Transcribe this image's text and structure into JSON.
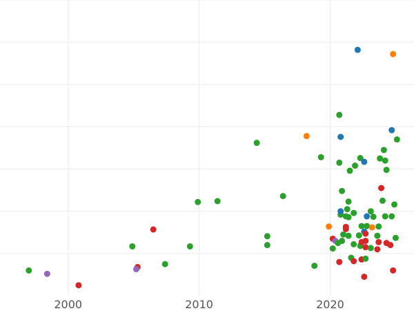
{
  "chart_data": {
    "type": "scatter",
    "title": "",
    "xlabel": "",
    "ylabel": "",
    "xlim": [
      1994.8,
      2026.4
    ],
    "ylim": [
      0,
      7
    ],
    "x_ticks": [
      2000,
      2010,
      2020
    ],
    "y_grid": [
      1,
      2,
      3,
      4,
      5,
      6,
      7
    ],
    "grid": true,
    "legend": "none",
    "colors": {
      "blue": "#1f77b4",
      "orange": "#ff7f0e",
      "green": "#2ca02c",
      "red": "#d62728",
      "purple": "#9467bd"
    },
    "points": [
      {
        "x": 1997.0,
        "y": 0.6,
        "c": "green"
      },
      {
        "x": 1998.4,
        "y": 0.52,
        "c": "purple"
      },
      {
        "x": 2000.8,
        "y": 0.25,
        "c": "red"
      },
      {
        "x": 2004.9,
        "y": 1.17,
        "c": "green"
      },
      {
        "x": 2005.3,
        "y": 0.68,
        "c": "red"
      },
      {
        "x": 2005.2,
        "y": 0.63,
        "c": "purple"
      },
      {
        "x": 2006.5,
        "y": 1.57,
        "c": "red"
      },
      {
        "x": 2007.4,
        "y": 0.75,
        "c": "green"
      },
      {
        "x": 2009.3,
        "y": 1.17,
        "c": "green"
      },
      {
        "x": 2009.9,
        "y": 2.22,
        "c": "green"
      },
      {
        "x": 2011.4,
        "y": 2.24,
        "c": "green"
      },
      {
        "x": 2014.4,
        "y": 3.62,
        "c": "green"
      },
      {
        "x": 2015.2,
        "y": 1.2,
        "c": "green"
      },
      {
        "x": 2015.2,
        "y": 1.41,
        "c": "green"
      },
      {
        "x": 2016.4,
        "y": 2.36,
        "c": "green"
      },
      {
        "x": 2018.2,
        "y": 3.78,
        "c": "orange"
      },
      {
        "x": 2018.8,
        "y": 0.71,
        "c": "green"
      },
      {
        "x": 2019.3,
        "y": 3.28,
        "c": "green"
      },
      {
        "x": 2019.9,
        "y": 1.64,
        "c": "orange"
      },
      {
        "x": 2020.2,
        "y": 1.12,
        "c": "green"
      },
      {
        "x": 2020.2,
        "y": 1.35,
        "c": "red"
      },
      {
        "x": 2020.4,
        "y": 1.3,
        "c": "purple"
      },
      {
        "x": 2020.6,
        "y": 1.25,
        "c": "green"
      },
      {
        "x": 2020.7,
        "y": 0.8,
        "c": "red"
      },
      {
        "x": 2020.7,
        "y": 3.15,
        "c": "green"
      },
      {
        "x": 2020.8,
        "y": 1.92,
        "c": "green"
      },
      {
        "x": 2020.8,
        "y": 2.0,
        "c": "blue"
      },
      {
        "x": 2020.7,
        "y": 4.28,
        "c": "green"
      },
      {
        "x": 2020.8,
        "y": 3.76,
        "c": "blue"
      },
      {
        "x": 2020.9,
        "y": 1.3,
        "c": "green"
      },
      {
        "x": 2020.9,
        "y": 2.48,
        "c": "green"
      },
      {
        "x": 2021.0,
        "y": 1.45,
        "c": "green"
      },
      {
        "x": 2021.2,
        "y": 1.58,
        "c": "red"
      },
      {
        "x": 2021.2,
        "y": 1.63,
        "c": "red"
      },
      {
        "x": 2021.2,
        "y": 1.88,
        "c": "green"
      },
      {
        "x": 2021.3,
        "y": 2.05,
        "c": "green"
      },
      {
        "x": 2021.4,
        "y": 1.42,
        "c": "green"
      },
      {
        "x": 2021.4,
        "y": 1.86,
        "c": "green"
      },
      {
        "x": 2021.4,
        "y": 2.23,
        "c": "green"
      },
      {
        "x": 2021.5,
        "y": 2.96,
        "c": "green"
      },
      {
        "x": 2021.6,
        "y": 0.9,
        "c": "green"
      },
      {
        "x": 2021.8,
        "y": 0.82,
        "c": "red"
      },
      {
        "x": 2021.8,
        "y": 1.22,
        "c": "green"
      },
      {
        "x": 2021.8,
        "y": 1.96,
        "c": "green"
      },
      {
        "x": 2021.9,
        "y": 3.08,
        "c": "green"
      },
      {
        "x": 2022.1,
        "y": 5.82,
        "c": "blue"
      },
      {
        "x": 2022.2,
        "y": 1.43,
        "c": "green"
      },
      {
        "x": 2022.3,
        "y": 1.18,
        "c": "green"
      },
      {
        "x": 2022.4,
        "y": 0.86,
        "c": "red"
      },
      {
        "x": 2022.4,
        "y": 1.27,
        "c": "red"
      },
      {
        "x": 2022.4,
        "y": 1.65,
        "c": "green"
      },
      {
        "x": 2022.3,
        "y": 3.26,
        "c": "green"
      },
      {
        "x": 2022.6,
        "y": 0.45,
        "c": "red"
      },
      {
        "x": 2022.6,
        "y": 1.52,
        "c": "blue"
      },
      {
        "x": 2022.7,
        "y": 1.15,
        "c": "red"
      },
      {
        "x": 2022.7,
        "y": 1.3,
        "c": "red"
      },
      {
        "x": 2022.7,
        "y": 1.47,
        "c": "red"
      },
      {
        "x": 2022.7,
        "y": 0.88,
        "c": "green"
      },
      {
        "x": 2022.8,
        "y": 1.88,
        "c": "blue"
      },
      {
        "x": 2022.8,
        "y": 1.65,
        "c": "green"
      },
      {
        "x": 2022.6,
        "y": 3.17,
        "c": "blue"
      },
      {
        "x": 2023.1,
        "y": 1.13,
        "c": "green"
      },
      {
        "x": 2023.2,
        "y": 1.62,
        "c": "orange"
      },
      {
        "x": 2023.1,
        "y": 2.0,
        "c": "green"
      },
      {
        "x": 2023.3,
        "y": 1.87,
        "c": "green"
      },
      {
        "x": 2023.6,
        "y": 1.42,
        "c": "green"
      },
      {
        "x": 2023.6,
        "y": 1.1,
        "c": "red"
      },
      {
        "x": 2023.7,
        "y": 1.27,
        "c": "red"
      },
      {
        "x": 2023.7,
        "y": 1.64,
        "c": "green"
      },
      {
        "x": 2023.8,
        "y": 3.25,
        "c": "green"
      },
      {
        "x": 2023.9,
        "y": 2.55,
        "c": "red"
      },
      {
        "x": 2024.0,
        "y": 2.25,
        "c": "green"
      },
      {
        "x": 2024.1,
        "y": 3.45,
        "c": "green"
      },
      {
        "x": 2024.2,
        "y": 1.88,
        "c": "green"
      },
      {
        "x": 2024.2,
        "y": 3.2,
        "c": "green"
      },
      {
        "x": 2024.3,
        "y": 1.25,
        "c": "red"
      },
      {
        "x": 2024.3,
        "y": 2.98,
        "c": "green"
      },
      {
        "x": 2024.6,
        "y": 1.2,
        "c": "red"
      },
      {
        "x": 2024.7,
        "y": 1.88,
        "c": "green"
      },
      {
        "x": 2024.7,
        "y": 3.92,
        "c": "blue"
      },
      {
        "x": 2024.8,
        "y": 0.6,
        "c": "red"
      },
      {
        "x": 2024.8,
        "y": 5.72,
        "c": "orange"
      },
      {
        "x": 2024.9,
        "y": 2.16,
        "c": "green"
      },
      {
        "x": 2025.0,
        "y": 1.37,
        "c": "green"
      },
      {
        "x": 2025.1,
        "y": 3.7,
        "c": "green"
      }
    ]
  }
}
